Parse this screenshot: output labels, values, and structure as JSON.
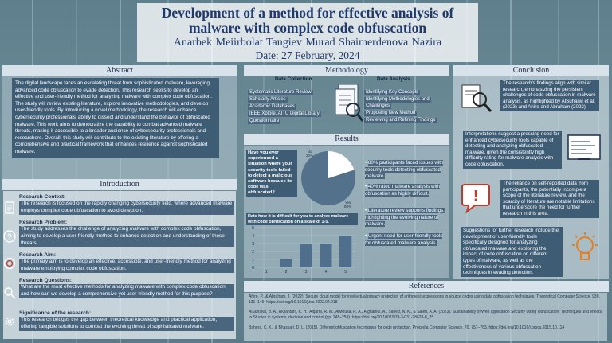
{
  "header": {
    "title_line1": "Development of a method for effective analysis of",
    "title_line2": "malware with complex code obfuscation",
    "authors": "Anarbek Meiirbolat   Tangiev Murad   Shaimerdenova Nazira",
    "date": "Date: 27 February, 2024"
  },
  "abstract": {
    "heading": "Abstract",
    "text": "The digital landscape faces an escalating threat from sophisticated malware, leveraging advanced code obfuscation to evade detection. This research seeks to develop an effective and user-friendly method for analyzing malware with complex code obfuscation. The study will review existing literature, explore innovative methodologies, and develop user-friendly tools. By introducing a novel methodology, the research will enhance cybersecurity professionals' ability to dissect and understand the behavior of obfuscated malware. This work aims to democratize the capability to combat advanced malware threats, making it accessible to a broader audience of cybersecurity professionals and researchers. Overall, this study will contribute to the existing literature by offering a comprehensive and practical framework that enhances resilience against sophisticated malware."
  },
  "introduction": {
    "heading": "Introduction",
    "sections": [
      {
        "title": "Research Context:",
        "text": "The research is focused on the rapidly changing cybersecurity field, where advanced malware employs complex code obfuscation to avoid detection."
      },
      {
        "title": "Research Problem:",
        "text": "The study addresses the challenge of analyzing malware with complex code obfuscation, aiming to develop a user-friendly method to enhance detection and understanding of these threats."
      },
      {
        "title": "Research Aim:",
        "text": "The primary aim is to develop an effective, accessible, and user-friendly method for analyzing malware employing complex code obfuscation."
      },
      {
        "title": "Research Questions:",
        "text": "What are the most effective methods for analyzing malware with complex code obfuscation, and how can we develop a comprehensive yet user-friendly method for this purpose?"
      },
      {
        "title": "Significance of the research:",
        "text": "This research bridges the gap between theoretical knowledge and practical application, offering tangible solutions to combat the evolving threat of sophisticated malware."
      }
    ]
  },
  "methodology": {
    "heading": "Methodology",
    "data_collection": {
      "label": "Data Collection",
      "items": [
        "Systematic Literature Review",
        "Scholarly Articles",
        "Academic Databases",
        "IEEE Xplore, AITU Digital Library",
        "Questionnaire"
      ]
    },
    "data_analysis": {
      "label": "Data Analysis",
      "items": [
        "Identifying Key Concepts",
        "Identifying Methodologies and",
        "Challenges",
        "Proposing New Method",
        "Reviewing and Refining Findings"
      ]
    }
  },
  "results": {
    "heading": "Results",
    "question1": "Have you ever experienced a situation where your security tools failed to detect a malicious software because its code was obfuscated?",
    "question2": "Rate how it is difficult for you to analyze malware with code obfuscation on a scale of 1-5.",
    "bullets": [
      "80% participants faced issues with security tools detecting obfuscated malware.",
      "40% rated malware analysis with obfuscation as highly difficult.",
      "Literature review supports findings, highlighting the evolving nature of malware.",
      "Urgent need for user-friendly tools for obfuscated malware analysis."
    ]
  },
  "chart_data": [
    {
      "type": "pie",
      "title": "Have you ever experienced a situation where your security tools failed to detect a malicious software because its code was obfuscated?",
      "labels": [
        "Yes",
        "No"
      ],
      "values": [
        80,
        20
      ],
      "value_labels": [
        "Yes\n80%",
        "No\n20%"
      ]
    },
    {
      "type": "bar",
      "title": "Rate how it is difficult for you to analyze malware with code obfuscation on a scale of 1-5.",
      "categories": [
        "1",
        "2",
        "3",
        "4",
        "5"
      ],
      "values": [
        0,
        1,
        3,
        3,
        4
      ],
      "ylim": [
        0,
        5
      ],
      "yticks": [
        "0",
        "1",
        "2",
        "3",
        "4",
        "5"
      ]
    }
  ],
  "conclusion": {
    "heading": "Conclusion",
    "paragraphs": [
      "The research's findings align with similar research, emphasizing the persistent challenges of code obfuscation in malware analysis, as highlighted by AlSuhaiwi et al. (2023) and Ahire and Abraham (2022).",
      "Interpretations suggest a pressing need for enhanced cybersecurity tools capable of detecting and analyzing obfuscated malware, given the consistently high difficulty rating for malware analysis with code obfuscation.",
      "The reliance on self-reported data from participants, the potentially incomplete scope of the literature review, and the scarcity of literature are notable limitations that underscore the need for further research in this area.",
      "Suggestions for further research include the development of user-friendly tools specifically designed for analyzing obfuscated malware and exploring the impact of code obfuscation on different types of malware, as well as the effectiveness of various obfuscation techniques in evading detection."
    ]
  },
  "references": {
    "heading": "References",
    "items": [
      "Ahire, P., & Abraham, J. (2022). Secure cloud model for intellectual privacy protection of arithmetic expressions in source codes using data obfuscation techniques. Theoretical Computer Science, 930, 131–149. https://doi.org/10.1016/j.tcs.2022.04.018",
      "AlSuhaiwi, B. A., AlQahtani, K. H., Alqarni, R. M., AlMousa, R. A., Alghamdi, A., Saeed, N. K., & Saleh, A. A. (2023). Sustainability of Web application Security Using Obfuscation: Techniques and effects. In Studies in systems, decision and control (pp. 245–259). https://doi.org/10.1007/978-3-031-28628-8_25",
      "Bahera, C. K., & Bhaskari, D. L. (2015). Different obfuscation techniques for code protection. Procedia Computer Science, 70, 757–763. https://doi.org/10.1016/j.procs.2015.10.114"
    ]
  }
}
